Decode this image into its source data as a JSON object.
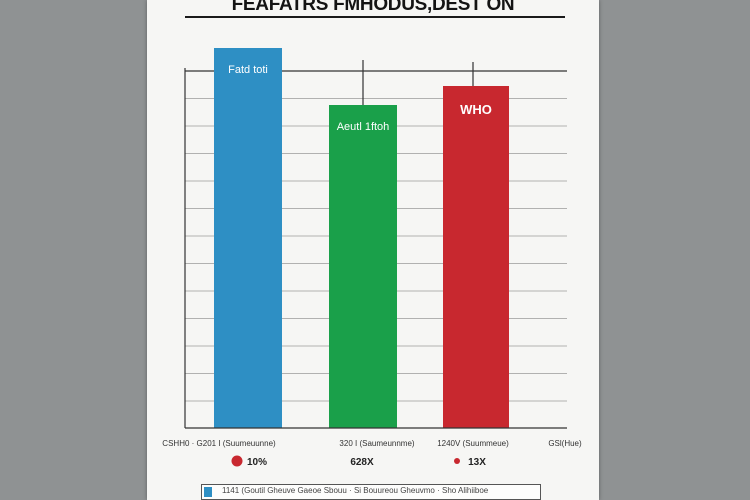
{
  "poster": {
    "title": "FEAFATRS FMHODUS,DEST ON",
    "footer": "1141 (Goutil Gheuve    Gaeoe Sbouu  ·  Si Bouureou Gheuvmo   ·   Sho Alihiiboe"
  },
  "chart_data": {
    "type": "bar",
    "title": "FEAFATRS FMHODUS,DEST ON",
    "xlabel": "",
    "ylabel": "",
    "grid": true,
    "categories": [
      "Fatd toti",
      "Aeutl 1ftoh",
      "WHO"
    ],
    "values": [
      100,
      85,
      90
    ],
    "colors": [
      "#2e8fc4",
      "#1aa04a",
      "#c8282f"
    ],
    "tick_labels": [
      "CSHH0 · G201 I (Suumeuunne)",
      "320 I (Saumeunnme)",
      "1240V (Suummeue)",
      "GSl(Hue)"
    ],
    "data_labels": [
      "10%",
      "628X",
      "13X"
    ],
    "marker_colors": [
      "#c8282f",
      "#c8282f",
      "#c8282f"
    ]
  }
}
